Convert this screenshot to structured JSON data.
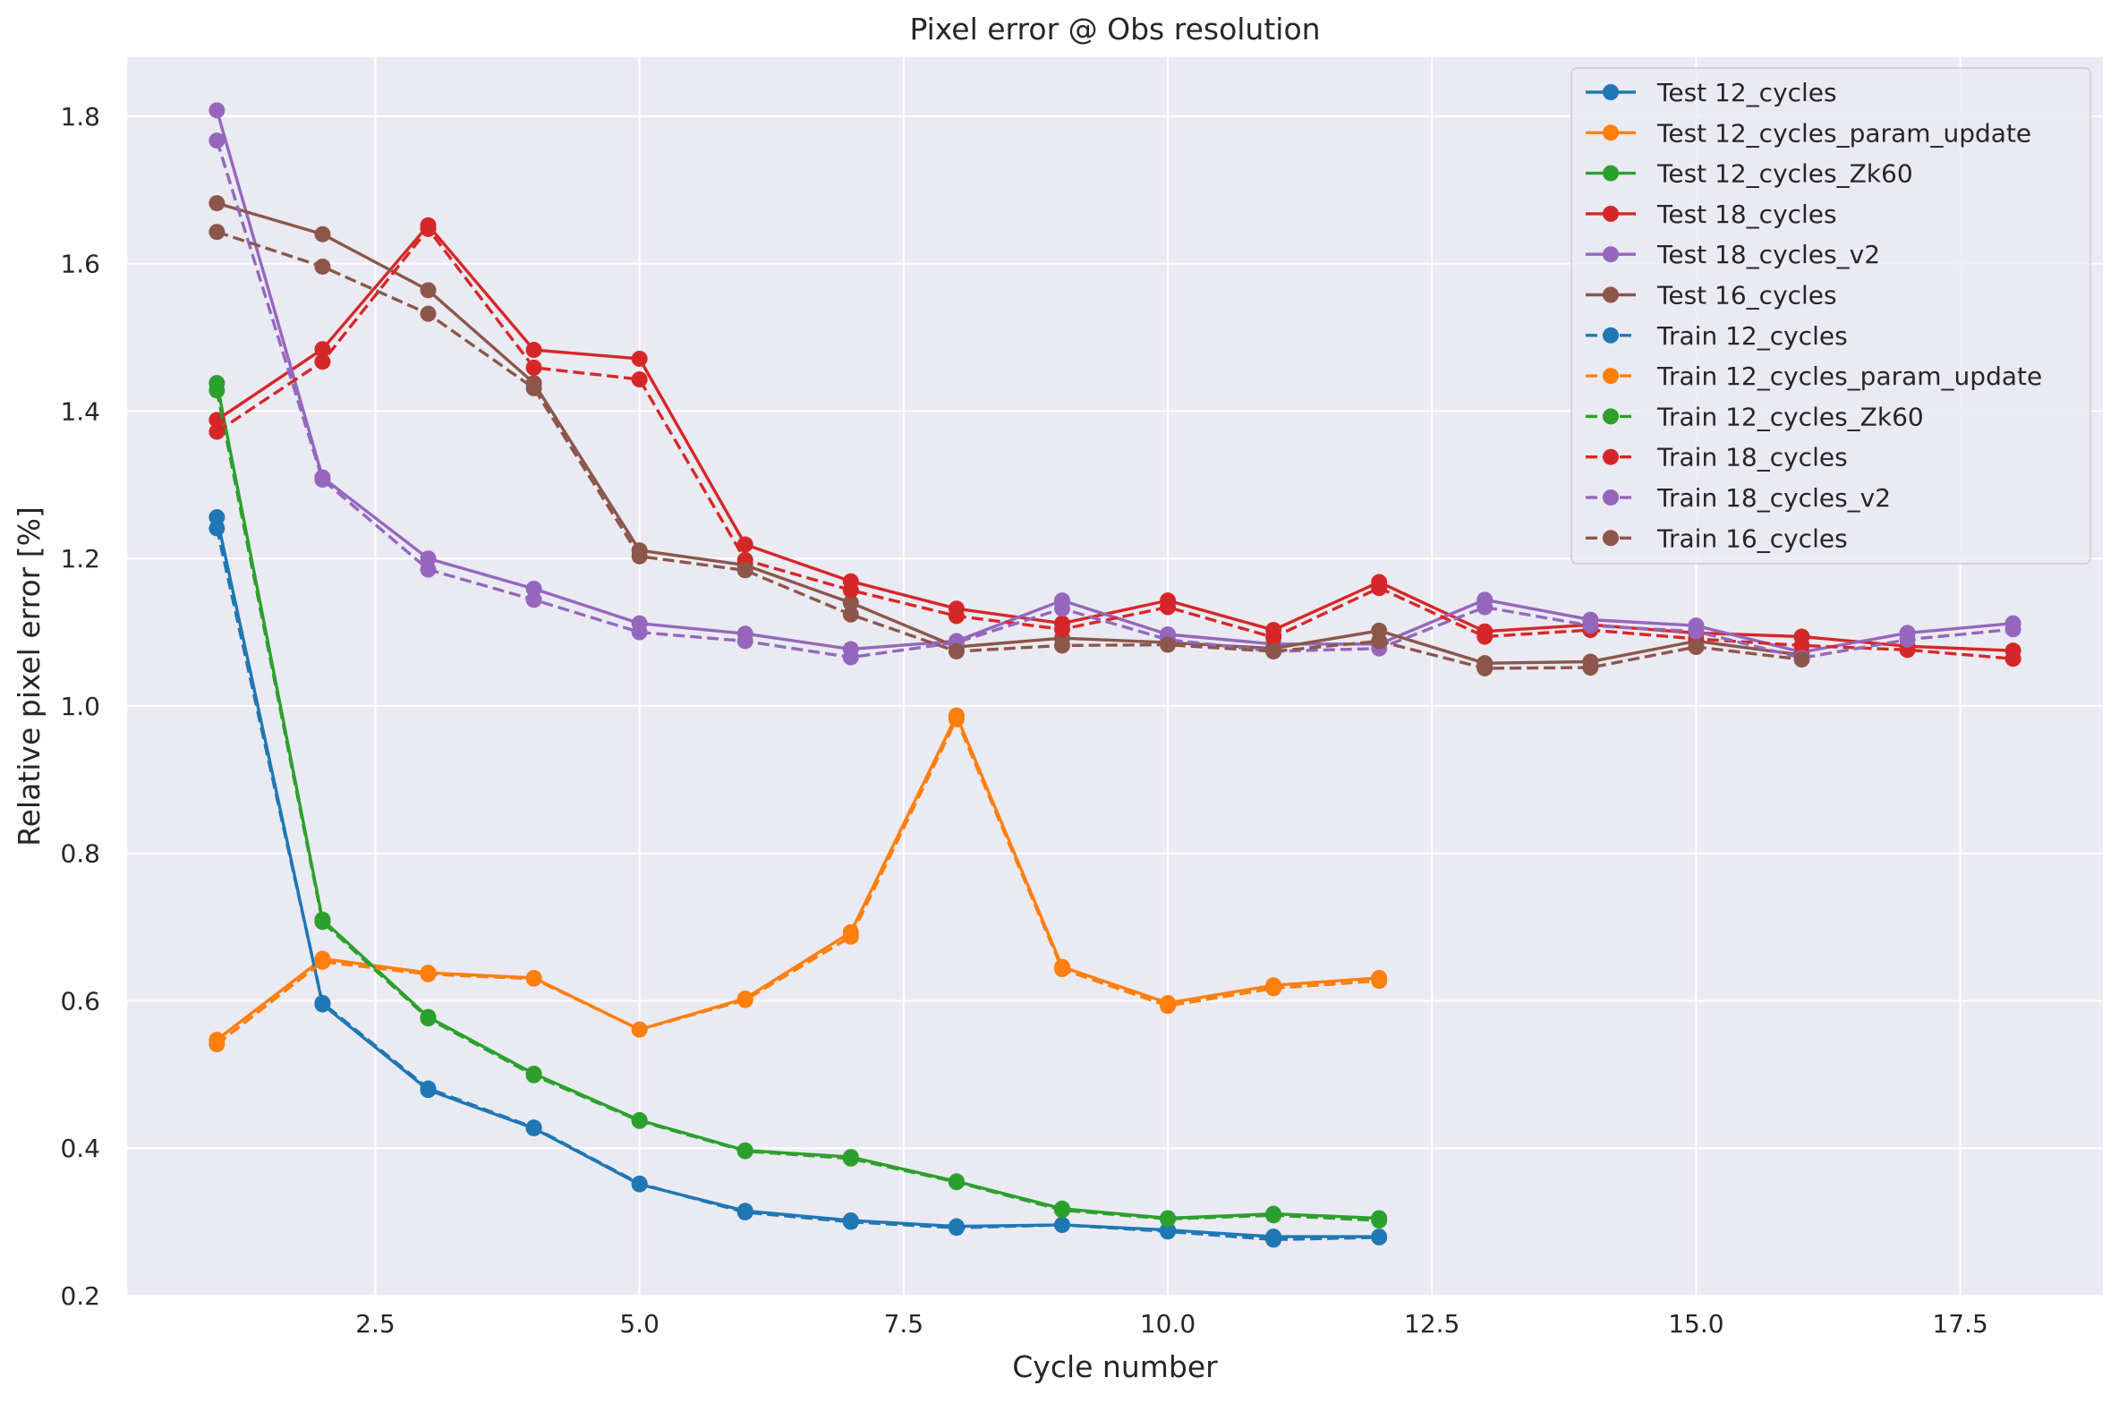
{
  "chart_data": {
    "type": "line",
    "title": "Pixel error @ Obs resolution",
    "xlabel": "Cycle number",
    "ylabel": "Relative pixel error [%]",
    "xlim": [
      0.15,
      18.85
    ],
    "ylim": [
      0.2,
      1.88
    ],
    "x_ticks": [
      "2.5",
      "5.0",
      "7.5",
      "10.0",
      "12.5",
      "15.0",
      "17.5"
    ],
    "y_ticks": [
      "0.2",
      "0.4",
      "0.6",
      "0.8",
      "1.0",
      "1.2",
      "1.4",
      "1.6",
      "1.8"
    ],
    "grid": true,
    "legend_position": "top-right",
    "series": [
      {
        "name": "Test 12_cycles",
        "color": "#1f77b4",
        "linestyle": "solid",
        "x": [
          1,
          2,
          3,
          4,
          5,
          6,
          7,
          8,
          9,
          10,
          11,
          12
        ],
        "y": [
          1.256,
          0.595,
          0.479,
          0.427,
          0.351,
          0.315,
          0.302,
          0.294,
          0.296,
          0.289,
          0.28,
          0.28
        ]
      },
      {
        "name": "Test 12_cycles_param_update",
        "color": "#ff7f0e",
        "linestyle": "solid",
        "x": [
          1,
          2,
          3,
          4,
          5,
          6,
          7,
          8,
          9,
          10,
          11,
          12
        ],
        "y": [
          0.547,
          0.657,
          0.638,
          0.631,
          0.561,
          0.603,
          0.693,
          0.987,
          0.646,
          0.597,
          0.621,
          0.631
        ]
      },
      {
        "name": "Test 12_cycles_Zk60",
        "color": "#2ca02c",
        "linestyle": "solid",
        "x": [
          1,
          2,
          3,
          4,
          5,
          6,
          7,
          8,
          9,
          10,
          11,
          12
        ],
        "y": [
          1.438,
          0.71,
          0.578,
          0.501,
          0.438,
          0.397,
          0.388,
          0.355,
          0.318,
          0.305,
          0.311,
          0.305
        ]
      },
      {
        "name": "Test 18_cycles",
        "color": "#d62728",
        "linestyle": "solid",
        "x": [
          1,
          2,
          3,
          4,
          5,
          6,
          7,
          8,
          9,
          10,
          11,
          12,
          13,
          14,
          15,
          16,
          17,
          18
        ],
        "y": [
          1.388,
          1.484,
          1.652,
          1.483,
          1.471,
          1.219,
          1.169,
          1.132,
          1.112,
          1.143,
          1.103,
          1.168,
          1.101,
          1.11,
          1.099,
          1.094,
          1.081,
          1.075
        ]
      },
      {
        "name": "Test 18_cycles_v2",
        "color": "#9467bd",
        "linestyle": "solid",
        "x": [
          1,
          2,
          3,
          4,
          5,
          6,
          7,
          8,
          9,
          10,
          11,
          12,
          13,
          14,
          15,
          16,
          17,
          18
        ],
        "y": [
          1.808,
          1.31,
          1.2,
          1.159,
          1.112,
          1.098,
          1.077,
          1.088,
          1.143,
          1.097,
          1.084,
          1.084,
          1.144,
          1.117,
          1.109,
          1.073,
          1.099,
          1.112
        ]
      },
      {
        "name": "Test 16_cycles",
        "color": "#8c564b",
        "linestyle": "solid",
        "x": [
          1,
          2,
          3,
          4,
          5,
          6,
          7,
          8,
          9,
          10,
          11,
          12,
          13,
          14,
          15,
          16
        ],
        "y": [
          1.682,
          1.64,
          1.564,
          1.438,
          1.211,
          1.191,
          1.14,
          1.08,
          1.092,
          1.086,
          1.078,
          1.102,
          1.058,
          1.06,
          1.088,
          1.069
        ]
      },
      {
        "name": "Train 12_cycles",
        "color": "#1f77b4",
        "linestyle": "dashed",
        "x": [
          1,
          2,
          3,
          4,
          5,
          6,
          7,
          8,
          9,
          10,
          11,
          12
        ],
        "y": [
          1.241,
          0.597,
          0.481,
          0.428,
          0.352,
          0.313,
          0.3,
          0.292,
          0.296,
          0.287,
          0.276,
          0.279
        ]
      },
      {
        "name": "Train 12_cycles_param_update",
        "color": "#ff7f0e",
        "linestyle": "dashed",
        "x": [
          1,
          2,
          3,
          4,
          5,
          6,
          7,
          8,
          9,
          10,
          11,
          12
        ],
        "y": [
          0.541,
          0.653,
          0.636,
          0.63,
          0.561,
          0.601,
          0.687,
          0.982,
          0.643,
          0.593,
          0.617,
          0.627
        ]
      },
      {
        "name": "Train 12_cycles_Zk60",
        "color": "#2ca02c",
        "linestyle": "dashed",
        "x": [
          1,
          2,
          3,
          4,
          5,
          6,
          7,
          8,
          9,
          10,
          11,
          12
        ],
        "y": [
          1.428,
          0.707,
          0.576,
          0.499,
          0.437,
          0.396,
          0.386,
          0.354,
          0.316,
          0.304,
          0.309,
          0.302
        ]
      },
      {
        "name": "Train 18_cycles",
        "color": "#d62728",
        "linestyle": "dashed",
        "x": [
          1,
          2,
          3,
          4,
          5,
          6,
          7,
          8,
          9,
          10,
          11,
          12,
          13,
          14,
          15,
          16,
          17,
          18
        ],
        "y": [
          1.372,
          1.467,
          1.647,
          1.459,
          1.443,
          1.198,
          1.157,
          1.122,
          1.104,
          1.134,
          1.093,
          1.16,
          1.094,
          1.103,
          1.091,
          1.082,
          1.076,
          1.064
        ]
      },
      {
        "name": "Train 18_cycles_v2",
        "color": "#9467bd",
        "linestyle": "dashed",
        "x": [
          1,
          2,
          3,
          4,
          5,
          6,
          7,
          8,
          9,
          10,
          11,
          12,
          13,
          14,
          15,
          16,
          17,
          18
        ],
        "y": [
          1.767,
          1.307,
          1.185,
          1.144,
          1.1,
          1.088,
          1.066,
          1.086,
          1.132,
          1.09,
          1.074,
          1.078,
          1.134,
          1.109,
          1.101,
          1.065,
          1.09,
          1.104
        ]
      },
      {
        "name": "Train 16_cycles",
        "color": "#8c564b",
        "linestyle": "dashed",
        "x": [
          1,
          2,
          3,
          4,
          5,
          6,
          7,
          8,
          9,
          10,
          11,
          12,
          13,
          14,
          15,
          16
        ],
        "y": [
          1.643,
          1.596,
          1.532,
          1.431,
          1.203,
          1.184,
          1.124,
          1.074,
          1.082,
          1.083,
          1.074,
          1.088,
          1.051,
          1.052,
          1.08,
          1.063
        ]
      }
    ]
  }
}
